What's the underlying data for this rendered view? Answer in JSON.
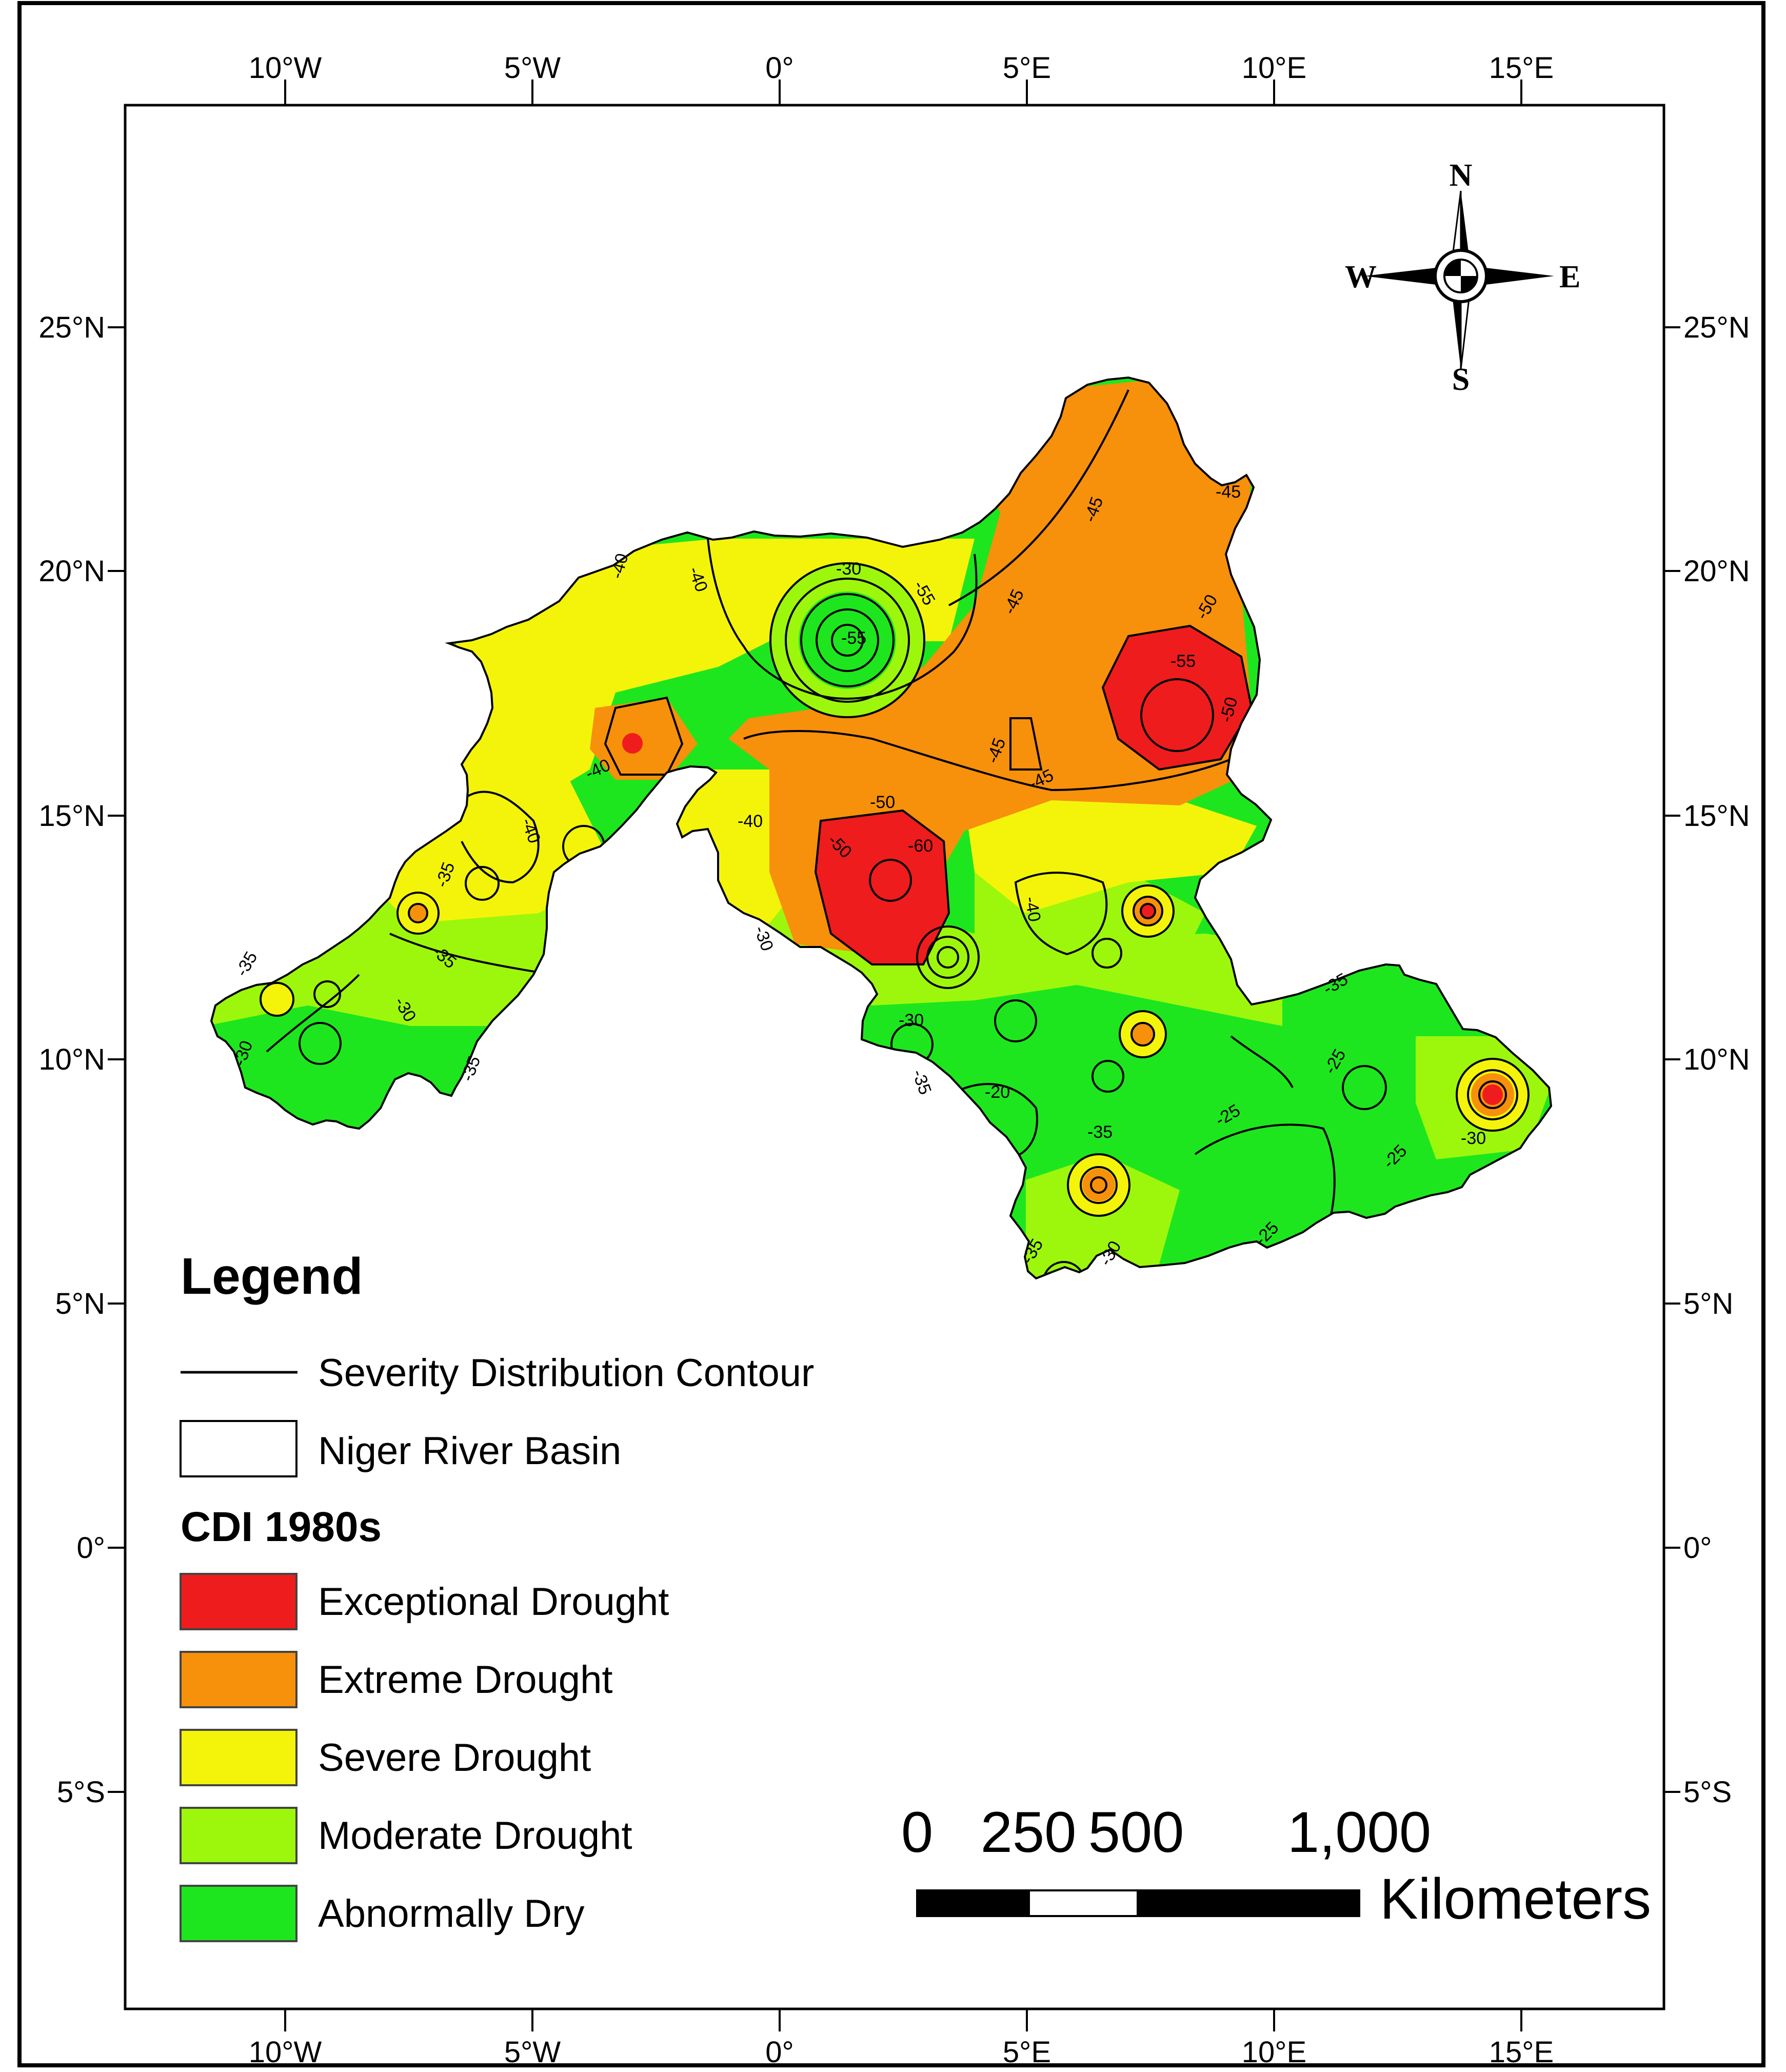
{
  "map": {
    "lon_ticks": [
      "10°W",
      "5°W",
      "0°",
      "5°E",
      "10°E",
      "15°E"
    ],
    "lat_ticks": [
      "25°N",
      "20°N",
      "15°N",
      "10°N",
      "5°N",
      "0°",
      "5°S"
    ],
    "compass": {
      "n": "N",
      "s": "S",
      "e": "E",
      "w": "W"
    },
    "contour_labels": [
      "-40",
      "-40",
      "-30",
      "-55",
      "-45",
      "-45",
      "-45",
      "-50",
      "-50",
      "-55",
      "-55",
      "-45",
      "-40",
      "-40",
      "-45",
      "-40",
      "-60",
      "-50",
      "-50",
      "-40",
      "-35",
      "-35",
      "-30",
      "-35",
      "-35",
      "-30",
      "-30",
      "-35",
      "-30",
      "-20",
      "-25",
      "-25",
      "-25",
      "-25",
      "-35",
      "-35",
      "-30",
      "-35",
      "-30"
    ],
    "legend": {
      "title": "Legend",
      "contour_label": "Severity Distribution Contour",
      "basin_label": "Niger River Basin",
      "cdi_title": "CDI 1980s",
      "classes": [
        {
          "label": "Exceptional Drought",
          "color": "#ee1c1c"
        },
        {
          "label": "Extreme Drought",
          "color": "#f7900b"
        },
        {
          "label": "Severe Drought",
          "color": "#f4f40a"
        },
        {
          "label": "Moderate Drought",
          "color": "#9df70c"
        },
        {
          "label": "Abnormally Dry",
          "color": "#1ee61e"
        }
      ]
    },
    "scale_bar": {
      "numbers": [
        "0",
        "250",
        "500",
        "1,000"
      ],
      "unit": "Kilometers"
    }
  }
}
